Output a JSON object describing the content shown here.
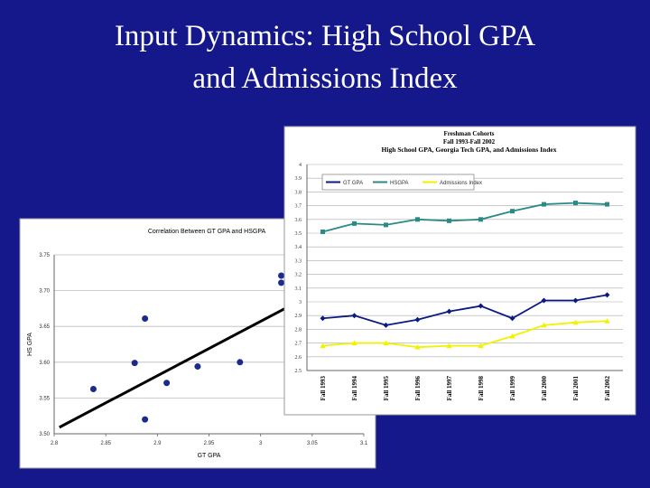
{
  "slide_title": [
    "Input Dynamics: High School GPA",
    "and Admissions Index"
  ],
  "chart_data": [
    {
      "type": "scatter",
      "title": "Correlation Between GT GPA and HSGPA",
      "x_label": "GT GPA",
      "y_label": "HS GPA",
      "x": [
        2.838,
        2.878,
        2.888,
        2.888,
        2.909,
        2.939,
        2.98,
        3.02,
        3.02
      ],
      "y": [
        3.5625,
        3.599,
        3.661,
        3.52,
        3.571,
        3.594,
        3.6,
        3.721,
        3.711
      ],
      "color": "#1c2a8c",
      "trendline": {
        "x": [
          2.805,
          3.1
        ],
        "y": [
          3.509,
          3.733
        ],
        "color": "#000000"
      },
      "xlim": [
        2.8,
        3.1
      ],
      "ylim": [
        3.5,
        3.75
      ],
      "xticks": [
        2.8,
        2.85,
        2.9,
        2.95,
        3,
        3.05,
        3.1
      ],
      "yticks": [
        {
          "value": 3.5,
          "label": "3.50"
        },
        {
          "value": 3.55,
          "label": "3.55"
        },
        {
          "value": 3.6,
          "label": "3.60"
        },
        {
          "value": 3.65,
          "label": "3.65"
        },
        {
          "value": 3.7,
          "label": "3.70"
        },
        {
          "value": 3.75,
          "label": "3.75"
        }
      ],
      "grid": true
    },
    {
      "type": "line",
      "title": [
        "Freshman Cohorts",
        "Fall 1993-Fall 2002",
        "High School GPA, Georgia Tech GPA, and Admissions Index"
      ],
      "categories": [
        "Fall 1993",
        "Fall 1994",
        "Fall 1995",
        "Fall 1996",
        "Fall 1997",
        "Fall 1998",
        "Fall 1999",
        "Fall 2000",
        "Fall 2001",
        "Fall 2002"
      ],
      "series": [
        {
          "name": "GT GPA",
          "color": "#0a1a80",
          "values": [
            2.88,
            2.9,
            2.83,
            2.87,
            2.93,
            2.97,
            2.88,
            3.01,
            3.01,
            3.05
          ]
        },
        {
          "name": "HSGPA",
          "color": "#2a8a86",
          "values": [
            3.51,
            3.57,
            3.56,
            3.6,
            3.59,
            3.6,
            3.66,
            3.71,
            3.72,
            3.71
          ]
        },
        {
          "name": "Admissions Index",
          "color": "#f2f200",
          "values": [
            2.68,
            2.7,
            2.7,
            2.67,
            2.68,
            2.68,
            2.75,
            2.83,
            2.85,
            2.86
          ]
        }
      ],
      "ylim": [
        2.5,
        4
      ],
      "yticks": [
        2.5,
        2.6,
        2.7,
        2.8,
        2.9,
        3,
        3.1,
        3.2,
        3.3,
        3.4,
        3.5,
        3.6,
        3.7,
        3.8,
        3.9,
        4
      ],
      "grid": true,
      "legend": "top-left"
    }
  ]
}
